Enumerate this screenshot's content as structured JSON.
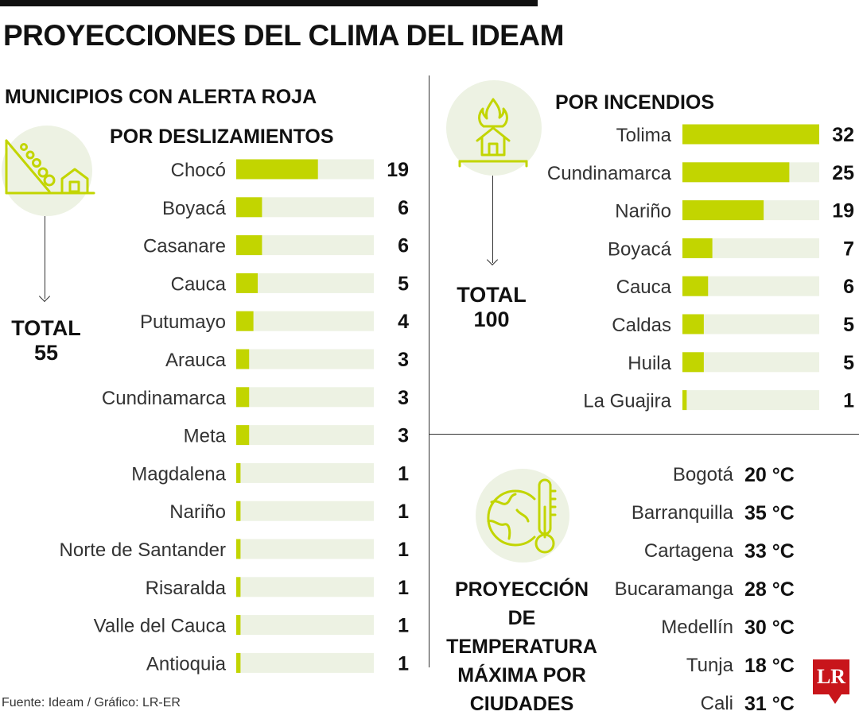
{
  "title": "PROYECCIONES DEL CLIMA DEL IDEAM",
  "subtitle": "MUNICIPIOS CON ALERTA ROJA",
  "colors": {
    "bar": "#c2d500",
    "track": "#edf2e3",
    "iconBg": "#edf2e3",
    "iconLine": "#c2d500",
    "logo": "#c8151b"
  },
  "left": {
    "total_label": "TOTAL",
    "total_value": "55"
  },
  "right": {
    "total_label": "TOTAL",
    "total_value": "100"
  },
  "icons": {
    "landslide": "landslide-icon",
    "fire": "fire-house-icon",
    "climate": "globe-thermometer-icon"
  },
  "chart_data": [
    {
      "type": "bar",
      "title": "POR DESLIZAMIENTOS",
      "orientation": "horizontal",
      "categories": [
        "Chocó",
        "Boyacá",
        "Casanare",
        "Cauca",
        "Putumayo",
        "Arauca",
        "Cundinamarca",
        "Meta",
        "Magdalena",
        "Nariño",
        "Norte de Santander",
        "Risaralda",
        "Valle del Cauca",
        "Antioquia"
      ],
      "values": [
        19,
        6,
        6,
        5,
        4,
        3,
        3,
        3,
        1,
        1,
        1,
        1,
        1,
        1
      ],
      "xlim": [
        0,
        32
      ]
    },
    {
      "type": "bar",
      "title": "POR INCENDIOS",
      "orientation": "horizontal",
      "categories": [
        "Tolima",
        "Cundinamarca",
        "Nariño",
        "Boyacá",
        "Cauca",
        "Caldas",
        "Huila",
        "La Guajira"
      ],
      "values": [
        32,
        25,
        19,
        7,
        6,
        5,
        5,
        1
      ],
      "xlim": [
        0,
        32
      ]
    }
  ],
  "temperature": {
    "heading": "PROYECCIÓN DE TEMPERATURA MÁXIMA POR CIUDADES",
    "rows": [
      {
        "city": "Bogotá",
        "value": "20 °C"
      },
      {
        "city": "Barranquilla",
        "value": "35 °C"
      },
      {
        "city": "Cartagena",
        "value": "33 °C"
      },
      {
        "city": "Bucaramanga",
        "value": "28 °C"
      },
      {
        "city": "Medellín",
        "value": "30 °C"
      },
      {
        "city": "Tunja",
        "value": "18 °C"
      },
      {
        "city": "Cali",
        "value": "31 °C"
      }
    ]
  },
  "source": "Fuente: Ideam / Gráfico: LR-ER",
  "logo_text": "LR"
}
